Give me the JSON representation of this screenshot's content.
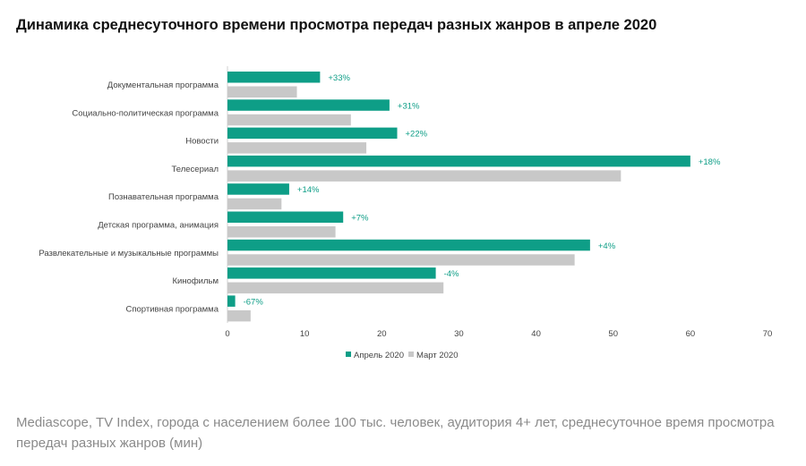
{
  "title": "Динамика среднесуточного времени просмотра передач разных жанров в апреле 2020",
  "footer": "Mediascope, TV Index, города с населением более 100 тыс. человек, аудитория 4+ лет, среднесуточное время просмотра передач разных жанров (мин)",
  "chart_data": {
    "type": "bar",
    "orientation": "horizontal",
    "categories": [
      "Документальная программа",
      "Социально-политическая программа",
      "Новости",
      "Телесериал",
      "Познавательная программа",
      "Детская программа, анимация",
      "Развлекательные и музыкальные программы",
      "Кинофильм",
      "Спортивная программа"
    ],
    "series": [
      {
        "name": "Апрель 2020",
        "color": "#0e9e87",
        "values": [
          12,
          21,
          22,
          60,
          8,
          15,
          47,
          27,
          1
        ]
      },
      {
        "name": "Март 2020",
        "color": "#c8c8c8",
        "values": [
          9,
          16,
          18,
          51,
          7,
          14,
          45,
          28,
          3
        ]
      }
    ],
    "data_labels": [
      "+33%",
      "+31%",
      "+22%",
      "+18%",
      "+14%",
      "+7%",
      "+4%",
      "-4%",
      "-67%"
    ],
    "xlim": [
      0,
      70
    ],
    "xticks": [
      0,
      10,
      20,
      30,
      40,
      50,
      60,
      70
    ],
    "grid": false,
    "legend": "bottom"
  }
}
